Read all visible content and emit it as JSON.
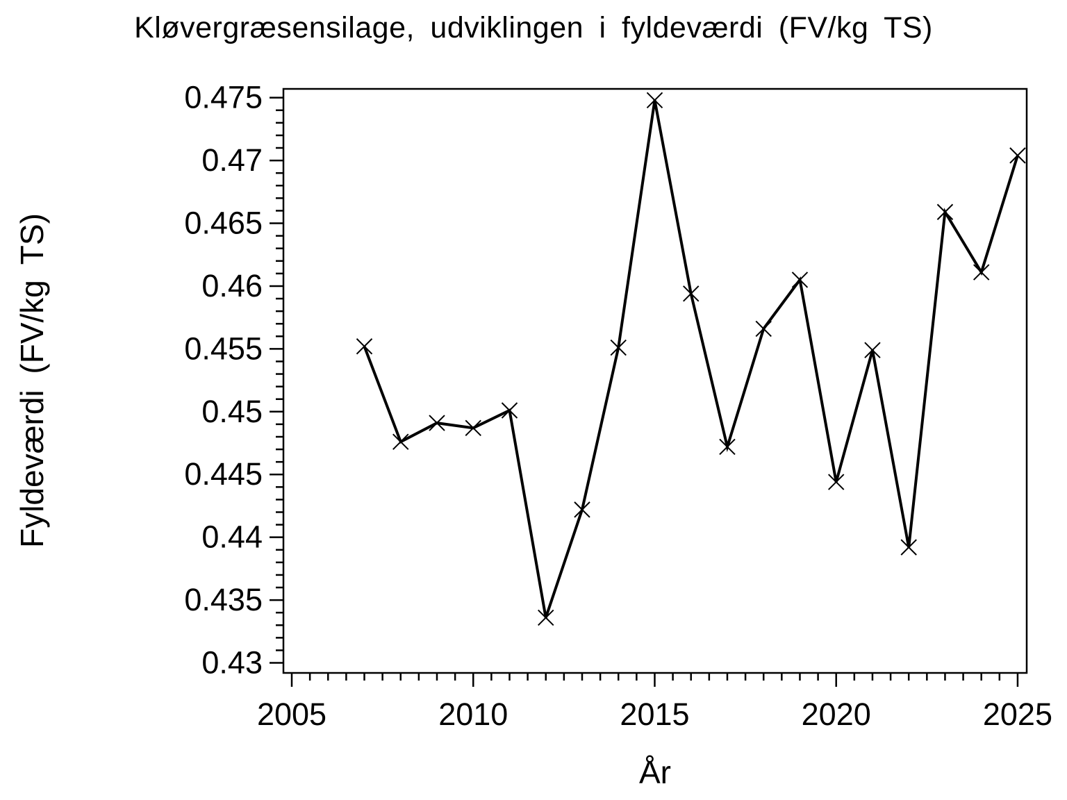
{
  "chart_data": {
    "type": "line",
    "title": "Kløvergræsensilage, udviklingen i fyldeværdi (FV/kg TS)",
    "xlabel": "År",
    "ylabel": "Fyldeværdi (FV/kg TS)",
    "series": [
      {
        "name": "Fyldeværdi",
        "x": [
          2007,
          2008,
          2009,
          2010,
          2011,
          2012,
          2013,
          2014,
          2015,
          2016,
          2017,
          2018,
          2019,
          2020,
          2021,
          2022,
          2023,
          2024,
          2025
        ],
        "values": [
          0.4552,
          0.4476,
          0.4491,
          0.4487,
          0.4501,
          0.4336,
          0.4422,
          0.4551,
          0.4748,
          0.4594,
          0.4472,
          0.4566,
          0.4605,
          0.4444,
          0.4549,
          0.4392,
          0.4659,
          0.4611,
          0.4704
        ]
      }
    ],
    "xlim": [
      2004.77,
      2025.25
    ],
    "ylim": [
      0.4292,
      0.4757
    ],
    "x_major_ticks": [
      2005,
      2010,
      2015,
      2020,
      2025
    ],
    "x_minor_step": 0.5,
    "y_major_ticks": [
      0.43,
      0.435,
      0.44,
      0.445,
      0.45,
      0.455,
      0.46,
      0.465,
      0.47,
      0.475
    ],
    "y_minor_step": 0.001,
    "marker": "x",
    "line_color": "#000000",
    "background_color": "#ffffff",
    "grid": false,
    "legend": false
  }
}
